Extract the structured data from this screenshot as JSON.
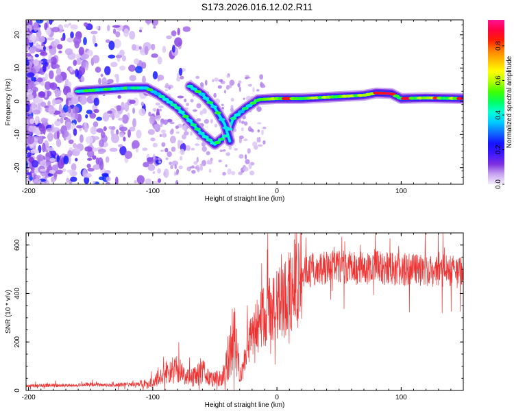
{
  "title": "S173.2026.016.12.02.R11",
  "chart_data": [
    {
      "type": "heatmap",
      "xlabel": "Height of straight line (km)",
      "ylabel": "Frequency (Hz)",
      "xlim": [
        -202,
        150
      ],
      "ylim": [
        -25,
        24.5
      ],
      "xticks": [
        -200,
        -100,
        0,
        100
      ],
      "yticks": [
        -20,
        -10,
        0,
        10,
        20
      ],
      "colorbar": {
        "label": "Normalized spectral amplitude",
        "range": [
          0,
          0.95
        ],
        "ticks": [
          "0.0",
          "0.2",
          "0.4",
          "0.6",
          "0.8"
        ],
        "colormap": [
          "#f4ecfc",
          "#c6a2f0",
          "#7a2de0",
          "#3c16ff",
          "#1414ff",
          "#0f6dff",
          "#00c8ff",
          "#00ffd8",
          "#00ff60",
          "#40ff00",
          "#b4ff00",
          "#ffff00",
          "#ffc000",
          "#ff8000",
          "#ff2000",
          "#ff0040",
          "#ff1493"
        ]
      },
      "features": {
        "main_ridge": [
          [
            -160,
            3
          ],
          [
            -140,
            3.5
          ],
          [
            -120,
            4
          ],
          [
            -105,
            4
          ],
          [
            -95,
            2
          ],
          [
            -80,
            -2
          ],
          [
            -70,
            -6
          ],
          [
            -60,
            -10
          ],
          [
            -50,
            -13
          ],
          [
            -40,
            -10
          ],
          [
            -35,
            -5
          ],
          [
            -25,
            -2
          ],
          [
            -15,
            0.5
          ],
          [
            0,
            0.8
          ],
          [
            20,
            0.8
          ],
          [
            40,
            1.2
          ],
          [
            70,
            1.8
          ],
          [
            80,
            2.5
          ],
          [
            92,
            2.3
          ],
          [
            100,
            0.8
          ],
          [
            120,
            1
          ],
          [
            150,
            0.8
          ]
        ],
        "secondary_ridge": [
          [
            -70,
            4.5
          ],
          [
            -60,
            2
          ],
          [
            -50,
            -2
          ],
          [
            -42,
            -7
          ],
          [
            -38,
            -12
          ]
        ]
      }
    },
    {
      "type": "line",
      "xlabel": "Height of straight line (km)",
      "ylabel": "SNR (10 * v/v)",
      "xlim": [
        -202,
        150
      ],
      "ylim": [
        0,
        650
      ],
      "xticks": [
        -200,
        -100,
        0,
        100
      ],
      "yticks": [
        0,
        200,
        400,
        600
      ],
      "color": "#ee3333",
      "series": [
        {
          "name": "SNR",
          "x": [
            -202,
            -190,
            -180,
            -170,
            -160,
            -150,
            -140,
            -130,
            -120,
            -110,
            -100,
            -95,
            -90,
            -85,
            -80,
            -75,
            -70,
            -65,
            -60,
            -55,
            -50,
            -45,
            -42,
            -40,
            -37,
            -35,
            -32,
            -30,
            -27,
            -25,
            -20,
            -15,
            -10,
            -5,
            0,
            5,
            10,
            15,
            20,
            25,
            30,
            40,
            50,
            60,
            70,
            80,
            90,
            100,
            110,
            120,
            130,
            140,
            150
          ],
          "values": [
            20,
            20,
            22,
            20,
            22,
            25,
            22,
            22,
            25,
            25,
            30,
            55,
            70,
            80,
            90,
            60,
            50,
            60,
            80,
            55,
            50,
            50,
            80,
            110,
            180,
            230,
            150,
            60,
            90,
            180,
            220,
            270,
            300,
            330,
            350,
            370,
            420,
            450,
            480,
            490,
            500,
            505,
            510,
            505,
            505,
            510,
            500,
            500,
            495,
            495,
            495,
            490,
            490
          ]
        }
      ]
    }
  ]
}
